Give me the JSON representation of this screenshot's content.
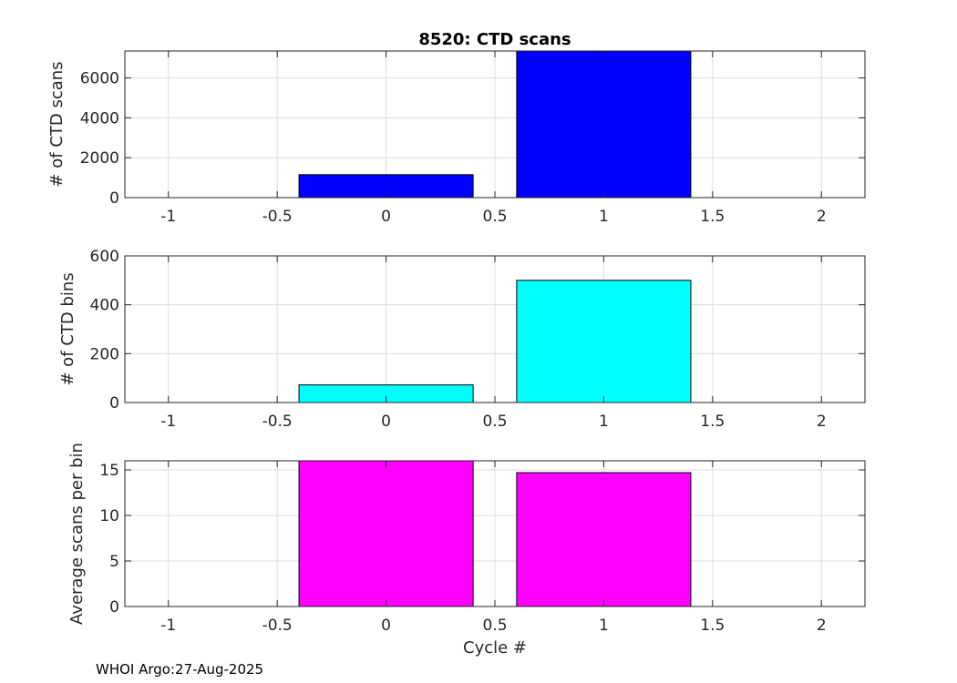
{
  "footer": "WHOI Argo:27-Aug-2025",
  "chart_data": [
    {
      "type": "bar",
      "title": "8520: CTD scans",
      "xlabel": "",
      "ylabel": "# of CTD scans",
      "x": [
        0,
        1
      ],
      "values": [
        1150,
        7350
      ],
      "bar_width": 0.8,
      "bar_color": "#0000ff",
      "xlim": [
        -1.2,
        2.2
      ],
      "ylim": [
        0,
        7350
      ],
      "xticks": [
        -1,
        -0.5,
        0,
        0.5,
        1,
        1.5,
        2
      ],
      "xtick_labels": [
        "-1",
        "-0.5",
        "0",
        "0.5",
        "1",
        "1.5",
        "2"
      ],
      "yticks": [
        0,
        2000,
        4000,
        6000
      ],
      "ytick_labels": [
        "0",
        "2000",
        "4000",
        "6000"
      ],
      "grid": true
    },
    {
      "type": "bar",
      "title": "",
      "xlabel": "",
      "ylabel": "# of CTD bins",
      "x": [
        0,
        1
      ],
      "values": [
        72,
        500
      ],
      "bar_width": 0.8,
      "bar_color": "#00ffff",
      "xlim": [
        -1.2,
        2.2
      ],
      "ylim": [
        0,
        600
      ],
      "xticks": [
        -1,
        -0.5,
        0,
        0.5,
        1,
        1.5,
        2
      ],
      "xtick_labels": [
        "-1",
        "-0.5",
        "0",
        "0.5",
        "1",
        "1.5",
        "2"
      ],
      "yticks": [
        0,
        200,
        400,
        600
      ],
      "ytick_labels": [
        "0",
        "200",
        "400",
        "600"
      ],
      "grid": true
    },
    {
      "type": "bar",
      "title": "",
      "xlabel": "Cycle #",
      "ylabel": "Average scans per bin",
      "x": [
        0,
        1
      ],
      "values": [
        16,
        14.7
      ],
      "bar_width": 0.8,
      "bar_color": "#ff00ff",
      "xlim": [
        -1.2,
        2.2
      ],
      "ylim": [
        0,
        16
      ],
      "xticks": [
        -1,
        -0.5,
        0,
        0.5,
        1,
        1.5,
        2
      ],
      "xtick_labels": [
        "-1",
        "-0.5",
        "0",
        "0.5",
        "1",
        "1.5",
        "2"
      ],
      "yticks": [
        0,
        5,
        10,
        15
      ],
      "ytick_labels": [
        "0",
        "5",
        "10",
        "15"
      ],
      "grid": true
    }
  ]
}
